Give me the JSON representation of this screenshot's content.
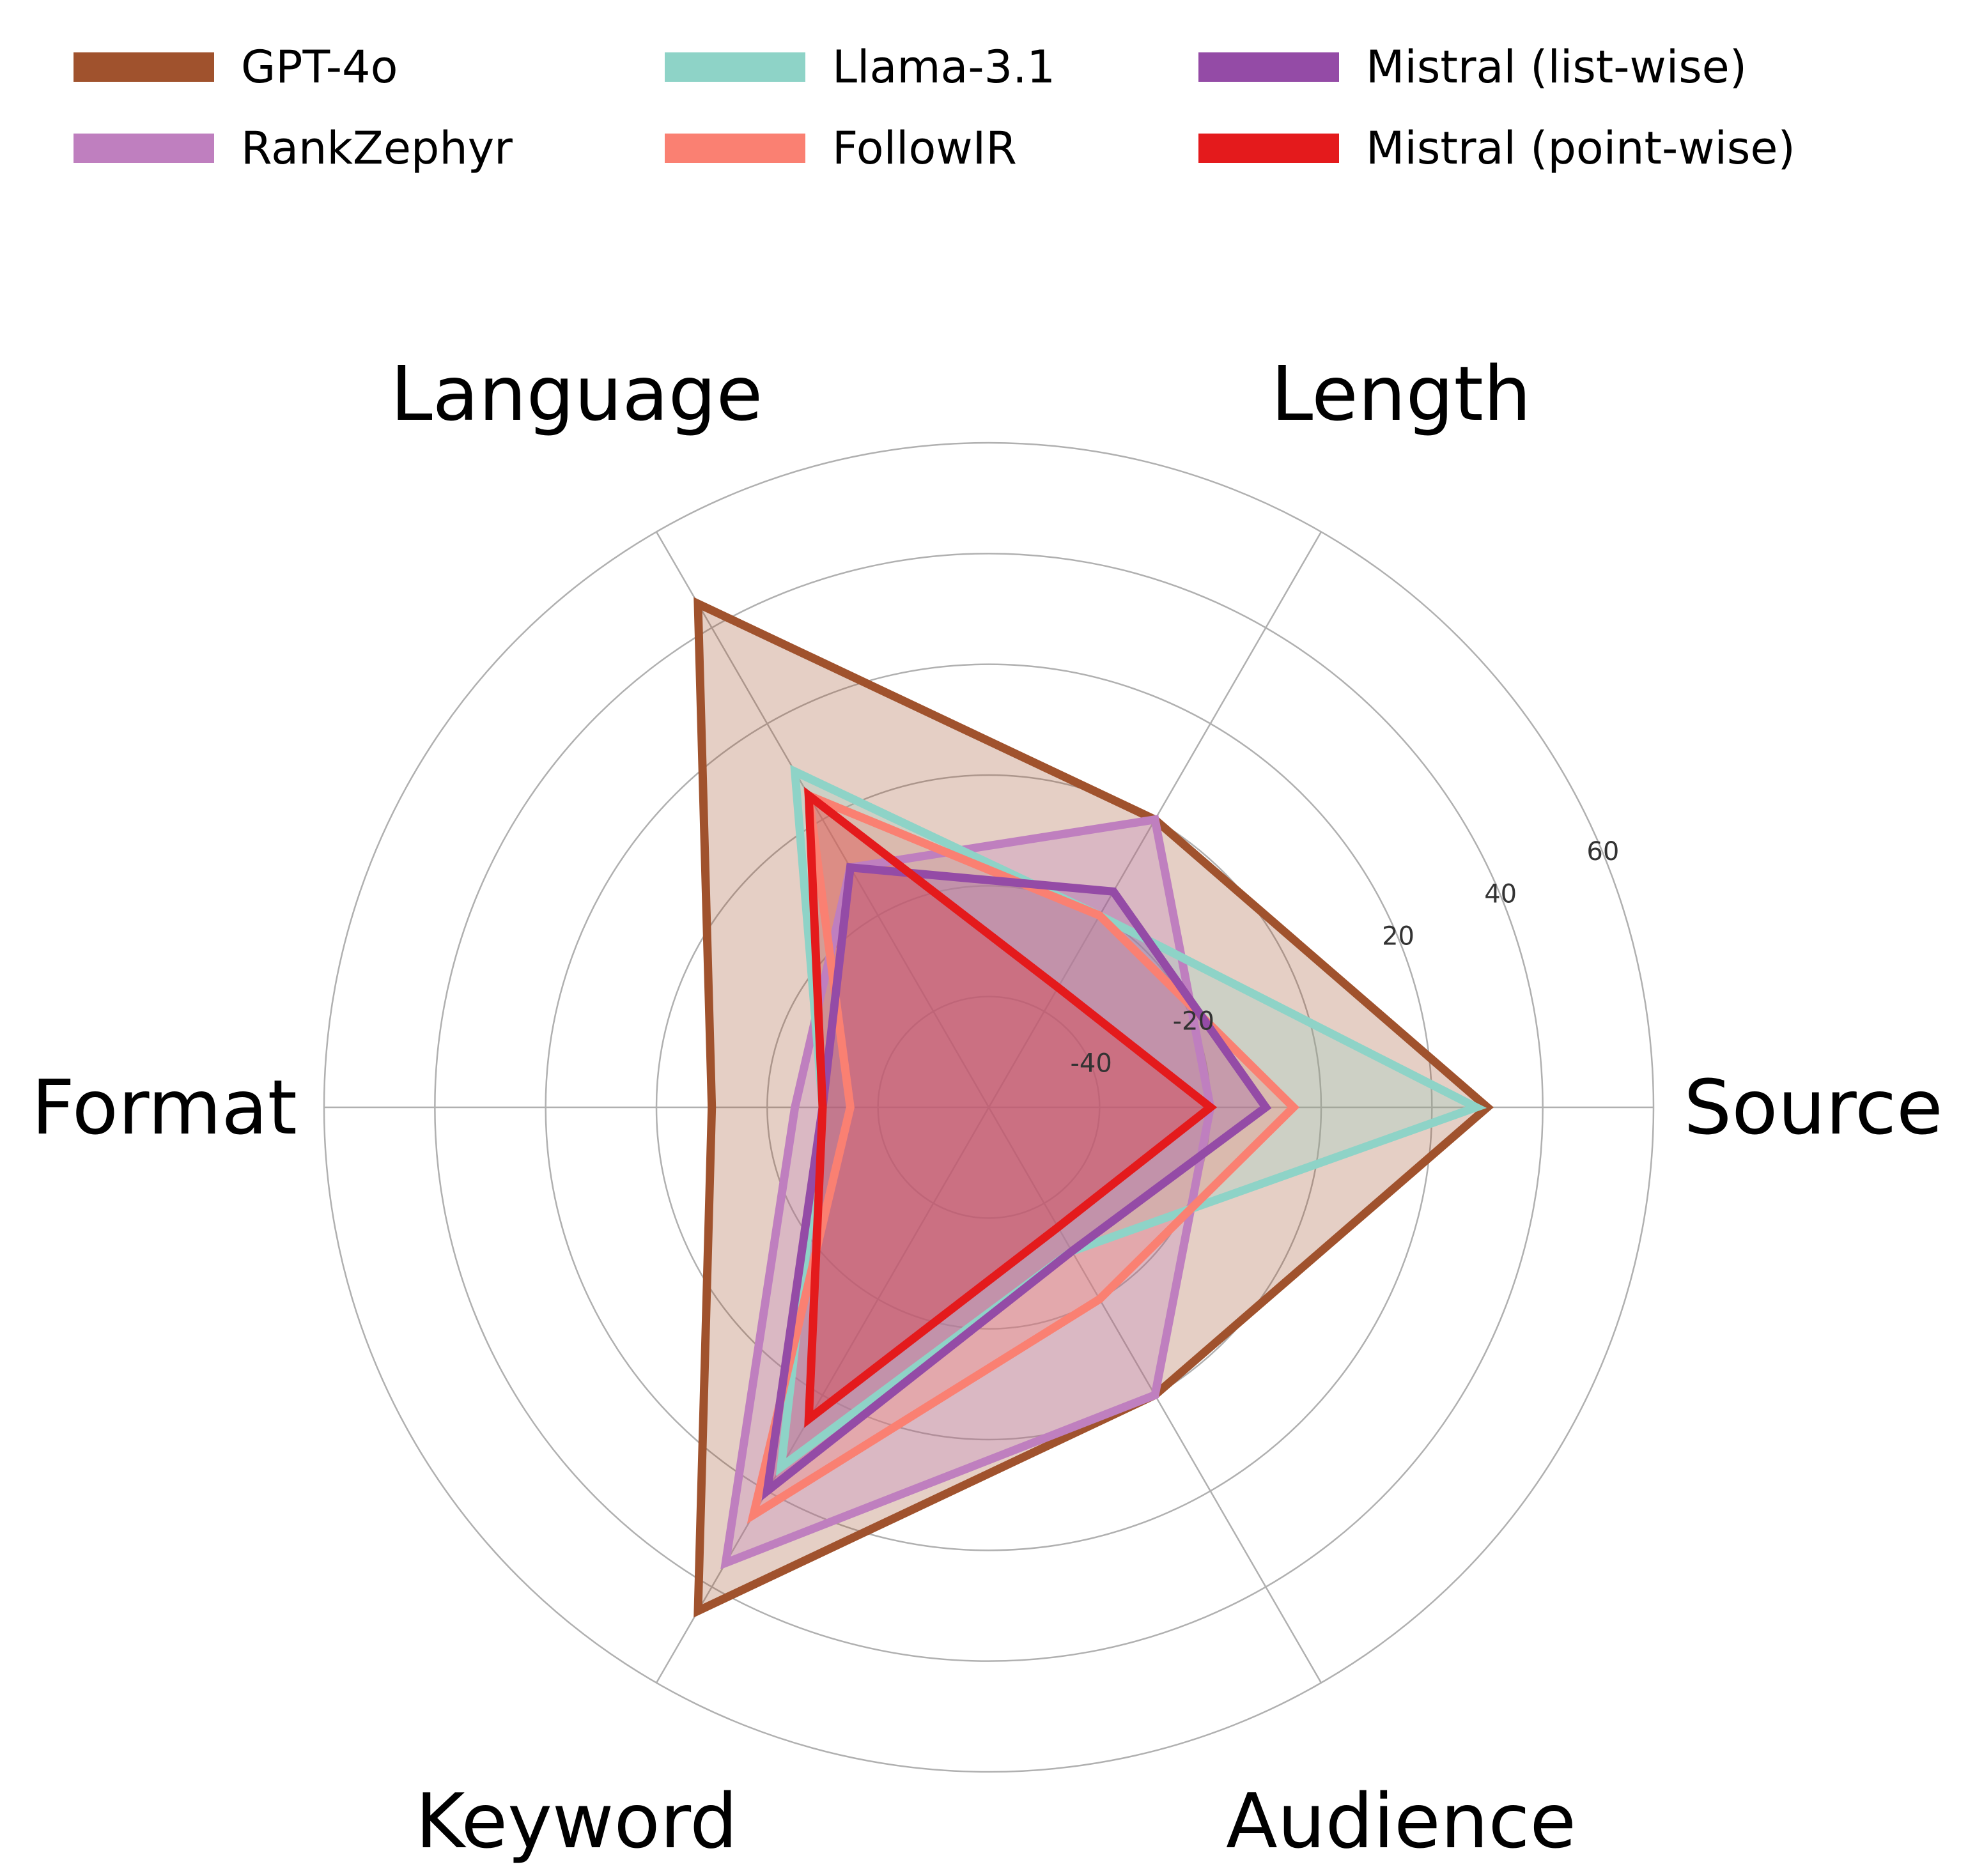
{
  "chart_data": {
    "type": "radar",
    "axes": [
      "Source",
      "Length",
      "Language",
      "Format",
      "Keyword",
      "Audience"
    ],
    "rlim": [
      -60,
      60
    ],
    "radial_ticks": [
      -40,
      -20,
      20,
      40,
      60
    ],
    "grid": true,
    "legend_position": "top",
    "series": [
      {
        "name": "GPT-4o",
        "color": "#A0522D",
        "values": [
          30,
          0,
          45,
          -10,
          45,
          0
        ]
      },
      {
        "name": "RankZephyr",
        "color": "#BF7FBF",
        "values": [
          -20,
          0,
          -10,
          -25,
          35,
          0
        ]
      },
      {
        "name": "Llama-3.1",
        "color": "#8ED3C7",
        "values": [
          28,
          -20,
          10,
          -30,
          15,
          -30
        ]
      },
      {
        "name": "FollowIR",
        "color": "#FA8072",
        "values": [
          -5,
          -20,
          5,
          -35,
          25,
          -20
        ]
      },
      {
        "name": "Mistral (list-wise)",
        "color": "#944BA6",
        "values": [
          -10,
          -15,
          -10,
          -30,
          20,
          -30
        ]
      },
      {
        "name": "Mistral (point-wise)",
        "color": "#E41A1C",
        "values": [
          -20,
          -35,
          5,
          -30,
          5,
          -35
        ]
      }
    ]
  }
}
